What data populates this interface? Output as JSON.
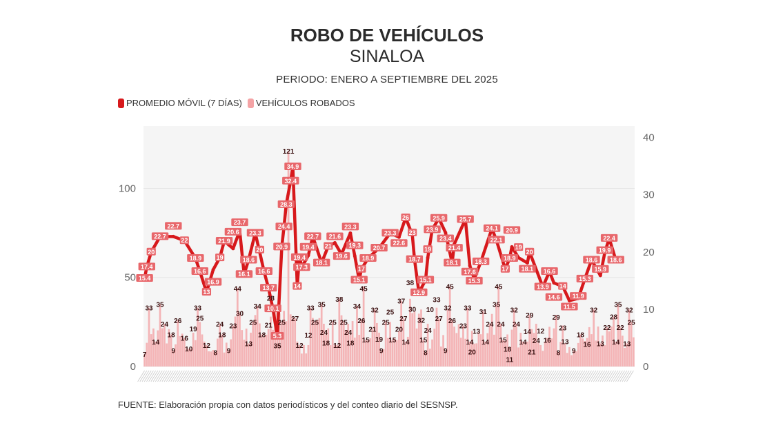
{
  "header": {
    "title": "ROBO DE VEHÍCULOS",
    "subtitle": "SINALOA",
    "period": "PERIODO: ENERO A SEPTIEMBRE DEL 2025"
  },
  "legend": [
    {
      "label": "PROMEDIO MÓVIL (7 DÍAS)",
      "color": "#d7191c"
    },
    {
      "label": "VEHÍCULOS ROBADOS",
      "color": "#f4a3a5"
    }
  ],
  "footer": "FUENTE: Elaboración propia con datos periodísticos y del conteo diario del SESNSP.",
  "colors": {
    "line": "#d7191c",
    "bar": "#f4b4b6",
    "plot_bg": "#f5f5f5",
    "grid": "#e6e6e6"
  },
  "chart_data": {
    "type": "bar+line",
    "title": "ROBO DE VEHÍCULOS",
    "subtitle": "SINALOA",
    "period": "PERIODO: ENERO A SEPTIEMBRE DEL 2025",
    "x_description": "Días de enero a septiembre 2025 (etiquetas ilegibles)",
    "left_axis": {
      "label": "",
      "ylim": [
        0,
        135
      ],
      "ticks": [
        0,
        50,
        100
      ],
      "series": "VEHÍCULOS ROBADOS"
    },
    "right_axis": {
      "label": "",
      "ylim": [
        0,
        42
      ],
      "ticks": [
        0,
        10,
        20,
        30,
        40
      ],
      "series": "PROMEDIO MÓVIL (7 DÍAS)"
    },
    "grid": true,
    "legend_position": "top-left",
    "bar_labels": [
      {
        "day": 1,
        "value": 7
      },
      {
        "day": 3,
        "value": 33
      },
      {
        "day": 6,
        "value": 14
      },
      {
        "day": 8,
        "value": 35
      },
      {
        "day": 10,
        "value": 24
      },
      {
        "day": 13,
        "value": 18
      },
      {
        "day": 14,
        "value": 9
      },
      {
        "day": 16,
        "value": 26
      },
      {
        "day": 19,
        "value": 16
      },
      {
        "day": 21,
        "value": 10
      },
      {
        "day": 23,
        "value": 19
      },
      {
        "day": 25,
        "value": 33
      },
      {
        "day": 26,
        "value": 25
      },
      {
        "day": 29,
        "value": 12
      },
      {
        "day": 33,
        "value": 8
      },
      {
        "day": 35,
        "value": 24
      },
      {
        "day": 36,
        "value": 18
      },
      {
        "day": 39,
        "value": 9
      },
      {
        "day": 41,
        "value": 23
      },
      {
        "day": 43,
        "value": 44
      },
      {
        "day": 44,
        "value": 30
      },
      {
        "day": 48,
        "value": 13
      },
      {
        "day": 50,
        "value": 25
      },
      {
        "day": 52,
        "value": 34
      },
      {
        "day": 54,
        "value": 18
      },
      {
        "day": 57,
        "value": 21
      },
      {
        "day": 58,
        "value": 28
      },
      {
        "day": 61,
        "value": 35
      },
      {
        "day": 63,
        "value": 25
      },
      {
        "day": 69,
        "value": 27
      },
      {
        "day": 71,
        "value": 12
      },
      {
        "day": 75,
        "value": 12
      },
      {
        "day": 76,
        "value": 33
      },
      {
        "day": 78,
        "value": 25
      },
      {
        "day": 81,
        "value": 35
      },
      {
        "day": 82,
        "value": 24
      },
      {
        "day": 83,
        "value": 18
      },
      {
        "day": 86,
        "value": 25
      },
      {
        "day": 88,
        "value": 12
      },
      {
        "day": 89,
        "value": 38
      },
      {
        "day": 91,
        "value": 25
      },
      {
        "day": 93,
        "value": 24
      },
      {
        "day": 94,
        "value": 18
      },
      {
        "day": 97,
        "value": 34
      },
      {
        "day": 99,
        "value": 26
      },
      {
        "day": 100,
        "value": 45
      },
      {
        "day": 101,
        "value": 15
      },
      {
        "day": 104,
        "value": 21
      },
      {
        "day": 105,
        "value": 32
      },
      {
        "day": 107,
        "value": 19
      },
      {
        "day": 108,
        "value": 9
      },
      {
        "day": 110,
        "value": 25
      },
      {
        "day": 112,
        "value": 25
      },
      {
        "day": 113,
        "value": 15
      },
      {
        "day": 116,
        "value": 20
      },
      {
        "day": 117,
        "value": 37
      },
      {
        "day": 118,
        "value": 27
      },
      {
        "day": 119,
        "value": 14
      },
      {
        "day": 121,
        "value": 38
      },
      {
        "day": 122,
        "value": 30
      },
      {
        "day": 126,
        "value": 32
      },
      {
        "day": 127,
        "value": 15
      },
      {
        "day": 128,
        "value": 8
      },
      {
        "day": 129,
        "value": 24
      },
      {
        "day": 130,
        "value": 10
      },
      {
        "day": 133,
        "value": 33
      },
      {
        "day": 134,
        "value": 27
      },
      {
        "day": 137,
        "value": 9
      },
      {
        "day": 138,
        "value": 32
      },
      {
        "day": 139,
        "value": 45
      },
      {
        "day": 140,
        "value": 26
      },
      {
        "day": 145,
        "value": 23
      },
      {
        "day": 147,
        "value": 33
      },
      {
        "day": 148,
        "value": 14
      },
      {
        "day": 149,
        "value": 20
      },
      {
        "day": 151,
        "value": 13
      },
      {
        "day": 154,
        "value": 31
      },
      {
        "day": 155,
        "value": 14
      },
      {
        "day": 157,
        "value": 24
      },
      {
        "day": 160,
        "value": 35
      },
      {
        "day": 161,
        "value": 45
      },
      {
        "day": 162,
        "value": 24
      },
      {
        "day": 163,
        "value": 15
      },
      {
        "day": 165,
        "value": 18
      },
      {
        "day": 166,
        "value": 11
      },
      {
        "day": 168,
        "value": 32
      },
      {
        "day": 169,
        "value": 24
      },
      {
        "day": 172,
        "value": 14
      },
      {
        "day": 174,
        "value": 14
      },
      {
        "day": 175,
        "value": 29
      },
      {
        "day": 176,
        "value": 21
      },
      {
        "day": 178,
        "value": 24
      },
      {
        "day": 180,
        "value": 12
      },
      {
        "day": 183,
        "value": 16
      },
      {
        "day": 187,
        "value": 29
      },
      {
        "day": 188,
        "value": 8
      },
      {
        "day": 190,
        "value": 23
      },
      {
        "day": 191,
        "value": 13
      },
      {
        "day": 195,
        "value": 9
      },
      {
        "day": 198,
        "value": 18
      },
      {
        "day": 201,
        "value": 16
      },
      {
        "day": 204,
        "value": 32
      },
      {
        "day": 207,
        "value": 13
      },
      {
        "day": 210,
        "value": 22
      },
      {
        "day": 213,
        "value": 28
      },
      {
        "day": 214,
        "value": 14
      },
      {
        "day": 215,
        "value": 35
      },
      {
        "day": 216,
        "value": 22
      },
      {
        "day": 219,
        "value": 13
      },
      {
        "day": 220,
        "value": 32
      },
      {
        "day": 221,
        "value": 25
      }
    ],
    "outlier_bars": [
      {
        "day": 66,
        "value": 121
      }
    ],
    "line_points": [
      {
        "day": 1,
        "value": 15.4
      },
      {
        "day": 2,
        "value": 17.4
      },
      {
        "day": 4,
        "value": 20
      },
      {
        "day": 8,
        "value": 22.7
      },
      {
        "day": 14,
        "value": 22.7
      },
      {
        "day": 19,
        "value": 22
      },
      {
        "day": 24,
        "value": 18.9
      },
      {
        "day": 26,
        "value": 16.6
      },
      {
        "day": 29,
        "value": 13
      },
      {
        "day": 32,
        "value": 16.9
      },
      {
        "day": 35,
        "value": 19
      },
      {
        "day": 37,
        "value": 21.9
      },
      {
        "day": 41,
        "value": 20.6
      },
      {
        "day": 44,
        "value": 23.7
      },
      {
        "day": 46,
        "value": 16.1
      },
      {
        "day": 48,
        "value": 18.6
      },
      {
        "day": 51,
        "value": 23.3
      },
      {
        "day": 53,
        "value": 20
      },
      {
        "day": 55,
        "value": 16.6
      },
      {
        "day": 57,
        "value": 13.7
      },
      {
        "day": 59,
        "value": 10.1
      },
      {
        "day": 61,
        "value": 5.3
      },
      {
        "day": 63,
        "value": 20.9
      },
      {
        "day": 64,
        "value": 24.4
      },
      {
        "day": 65,
        "value": 28.3
      },
      {
        "day": 67,
        "value": 32.4
      },
      {
        "day": 68,
        "value": 34.9
      },
      {
        "day": 70,
        "value": 14
      },
      {
        "day": 72,
        "value": 17.3
      },
      {
        "day": 71,
        "value": 19.4
      },
      {
        "day": 75,
        "value": 19.4
      },
      {
        "day": 77,
        "value": 22.7
      },
      {
        "day": 81,
        "value": 18.1
      },
      {
        "day": 84,
        "value": 21
      },
      {
        "day": 87,
        "value": 21.6
      },
      {
        "day": 90,
        "value": 19.6
      },
      {
        "day": 94,
        "value": 23.3
      },
      {
        "day": 96,
        "value": 19.3
      },
      {
        "day": 99,
        "value": 17
      },
      {
        "day": 98,
        "value": 15.1
      },
      {
        "day": 102,
        "value": 18.9
      },
      {
        "day": 107,
        "value": 20.7
      },
      {
        "day": 112,
        "value": 23.3
      },
      {
        "day": 116,
        "value": 22.6
      },
      {
        "day": 119,
        "value": 26
      },
      {
        "day": 122,
        "value": 23
      },
      {
        "day": 123,
        "value": 18.7
      },
      {
        "day": 125,
        "value": 12.9
      },
      {
        "day": 128,
        "value": 15.1
      },
      {
        "day": 129,
        "value": 19
      },
      {
        "day": 131,
        "value": 23.9
      },
      {
        "day": 134,
        "value": 25.9
      },
      {
        "day": 137,
        "value": 23.4
      },
      {
        "day": 141,
        "value": 21.4
      },
      {
        "day": 140,
        "value": 18.1
      },
      {
        "day": 146,
        "value": 25.7
      },
      {
        "day": 148,
        "value": 17.6
      },
      {
        "day": 150,
        "value": 15.3
      },
      {
        "day": 153,
        "value": 18.3
      },
      {
        "day": 158,
        "value": 24.1
      },
      {
        "day": 160,
        "value": 22.1
      },
      {
        "day": 164,
        "value": 17
      },
      {
        "day": 166,
        "value": 18.9
      },
      {
        "day": 167,
        "value": 20.9
      },
      {
        "day": 170,
        "value": 19
      },
      {
        "day": 174,
        "value": 18.1
      },
      {
        "day": 175,
        "value": 20
      },
      {
        "day": 181,
        "value": 13.9
      },
      {
        "day": 184,
        "value": 16.6
      },
      {
        "day": 186,
        "value": 14.6
      },
      {
        "day": 190,
        "value": 14
      },
      {
        "day": 193,
        "value": 11.5
      },
      {
        "day": 197,
        "value": 11.9
      },
      {
        "day": 200,
        "value": 15.3
      },
      {
        "day": 203,
        "value": 18.6
      },
      {
        "day": 207,
        "value": 15.9
      },
      {
        "day": 209,
        "value": 19.9
      },
      {
        "day": 211,
        "value": 22.4
      },
      {
        "day": 214,
        "value": 18.6
      }
    ]
  }
}
